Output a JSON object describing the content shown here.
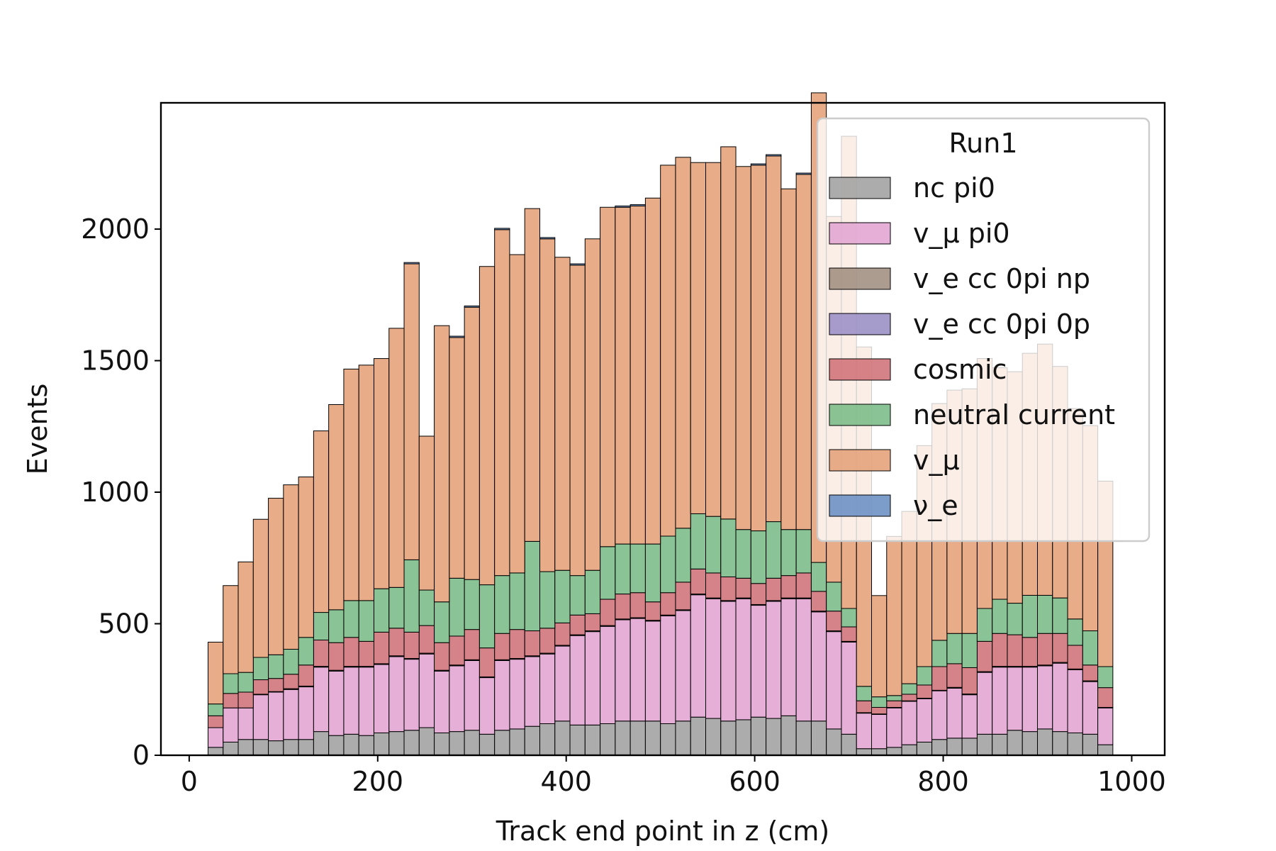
{
  "chart_data": {
    "type": "bar",
    "stacked": true,
    "xlabel": "Track end point in z (cm)",
    "ylabel": "Events",
    "xlim": [
      -30,
      1035
    ],
    "ylim": [
      0,
      2480
    ],
    "xticks": [
      0,
      200,
      400,
      600,
      800,
      1000
    ],
    "yticks": [
      0,
      500,
      1000,
      1500,
      2000
    ],
    "bin_width": 16,
    "x_left_edges": [
      20,
      36,
      52,
      68,
      84,
      100,
      116,
      132,
      148,
      164,
      180,
      196,
      212,
      228,
      244,
      260,
      276,
      292,
      308,
      324,
      340,
      356,
      372,
      388,
      404,
      420,
      436,
      452,
      468,
      484,
      500,
      516,
      532,
      548,
      564,
      580,
      596,
      612,
      628,
      644,
      660,
      676,
      692,
      708,
      724,
      740,
      756,
      772,
      788,
      804,
      820,
      836,
      852,
      868,
      884,
      900,
      916,
      932,
      948,
      964
    ],
    "legend": {
      "title": "Run1",
      "position": "upper right",
      "entries": [
        "nc pi0",
        "v_μ pi0",
        "v_e cc 0pi np",
        "v_e cc 0pi 0p",
        "cosmic",
        "neutral current",
        "v_μ",
        "ν_e"
      ]
    },
    "series": [
      {
        "name": "nc pi0",
        "color": "#a3a3a3",
        "values": [
          30,
          50,
          60,
          60,
          55,
          60,
          60,
          90,
          75,
          80,
          75,
          85,
          90,
          95,
          105,
          85,
          90,
          95,
          80,
          95,
          100,
          110,
          120,
          130,
          115,
          115,
          120,
          130,
          130,
          130,
          120,
          130,
          145,
          140,
          130,
          135,
          145,
          140,
          150,
          130,
          130,
          100,
          80,
          25,
          25,
          30,
          40,
          50,
          60,
          65,
          65,
          80,
          80,
          95,
          90,
          100,
          90,
          85,
          80,
          40
        ]
      },
      {
        "name": "v_μ pi0",
        "color": "#e2a6d3",
        "values": [
          75,
          130,
          120,
          170,
          185,
          190,
          200,
          245,
          245,
          255,
          260,
          260,
          285,
          270,
          280,
          235,
          250,
          265,
          215,
          265,
          265,
          265,
          265,
          285,
          340,
          355,
          370,
          385,
          390,
          380,
          410,
          420,
          465,
          455,
          455,
          460,
          425,
          445,
          445,
          465,
          415,
          370,
          350,
          135,
          130,
          150,
          165,
          165,
          185,
          190,
          165,
          235,
          255,
          240,
          245,
          240,
          260,
          240,
          200,
          140
        ]
      },
      {
        "name": "v_e cc 0pi np",
        "color": "#a39083",
        "values": [
          0,
          0,
          0,
          2,
          2,
          3,
          3,
          3,
          3,
          3,
          3,
          3,
          3,
          3,
          3,
          3,
          3,
          3,
          3,
          3,
          3,
          3,
          3,
          3,
          3,
          3,
          3,
          3,
          3,
          3,
          3,
          3,
          3,
          3,
          3,
          3,
          3,
          3,
          3,
          3,
          3,
          3,
          3,
          2,
          2,
          2,
          2,
          2,
          2,
          3,
          3,
          3,
          3,
          3,
          3,
          3,
          3,
          3,
          3,
          2
        ]
      },
      {
        "name": "v_e cc 0pi 0p",
        "color": "#9c91c7",
        "values": [
          0,
          0,
          0,
          0,
          0,
          0,
          0,
          0,
          0,
          0,
          0,
          0,
          0,
          0,
          0,
          0,
          0,
          0,
          0,
          0,
          0,
          0,
          0,
          0,
          0,
          0,
          0,
          0,
          0,
          0,
          0,
          0,
          0,
          0,
          0,
          0,
          0,
          0,
          0,
          0,
          0,
          0,
          0,
          0,
          0,
          0,
          0,
          0,
          0,
          0,
          0,
          0,
          0,
          0,
          0,
          0,
          0,
          0,
          0,
          0
        ]
      },
      {
        "name": "cosmic",
        "color": "#d0747b",
        "values": [
          45,
          55,
          60,
          55,
          50,
          55,
          80,
          100,
          105,
          110,
          95,
          120,
          105,
          100,
          105,
          105,
          110,
          115,
          110,
          100,
          110,
          95,
          95,
          85,
          75,
          65,
          100,
          95,
          95,
          70,
          85,
          105,
          95,
          95,
          90,
          75,
          80,
          85,
          85,
          95,
          75,
          75,
          55,
          45,
          25,
          25,
          25,
          50,
          90,
          90,
          100,
          115,
          125,
          120,
          110,
          120,
          110,
          90,
          60,
          75
        ]
      },
      {
        "name": "neutral current",
        "color": "#7dbd89",
        "values": [
          45,
          75,
          75,
          85,
          90,
          95,
          105,
          105,
          125,
          140,
          155,
          165,
          155,
          275,
          135,
          155,
          220,
          190,
          240,
          220,
          215,
          340,
          215,
          200,
          150,
          165,
          200,
          190,
          185,
          220,
          215,
          205,
          210,
          215,
          220,
          185,
          200,
          215,
          175,
          165,
          110,
          110,
          70,
          55,
          40,
          20,
          40,
          70,
          100,
          115,
          130,
          125,
          130,
          120,
          160,
          145,
          135,
          100,
          130,
          80
        ]
      },
      {
        "name": "v_μ",
        "color": "#e5a37c",
        "values": [
          235,
          335,
          420,
          525,
          595,
          625,
          610,
          690,
          780,
          880,
          895,
          875,
          985,
          1125,
          585,
          1050,
          915,
          1035,
          1210,
          1315,
          1210,
          1265,
          1265,
          1190,
          1180,
          1260,
          1290,
          1280,
          1285,
          1315,
          1410,
          1410,
          1335,
          1345,
          1415,
          1380,
          1390,
          1390,
          1295,
          1350,
          1785,
          1390,
          1795,
          1290,
          385,
          605,
          655,
          840,
          900,
          925,
          930,
          950,
          880,
          880,
          920,
          955,
          880,
          800,
          780,
          705
        ]
      },
      {
        "name": "ν_e",
        "color": "#6e91c4",
        "values": [
          0,
          0,
          0,
          0,
          0,
          0,
          0,
          0,
          0,
          0,
          0,
          0,
          0,
          5,
          0,
          0,
          5,
          5,
          0,
          5,
          0,
          0,
          5,
          0,
          5,
          0,
          0,
          5,
          5,
          0,
          0,
          0,
          0,
          0,
          0,
          0,
          5,
          5,
          0,
          5,
          0,
          0,
          0,
          0,
          0,
          0,
          0,
          0,
          0,
          0,
          0,
          0,
          0,
          0,
          0,
          0,
          0,
          0,
          0,
          0
        ]
      }
    ]
  }
}
